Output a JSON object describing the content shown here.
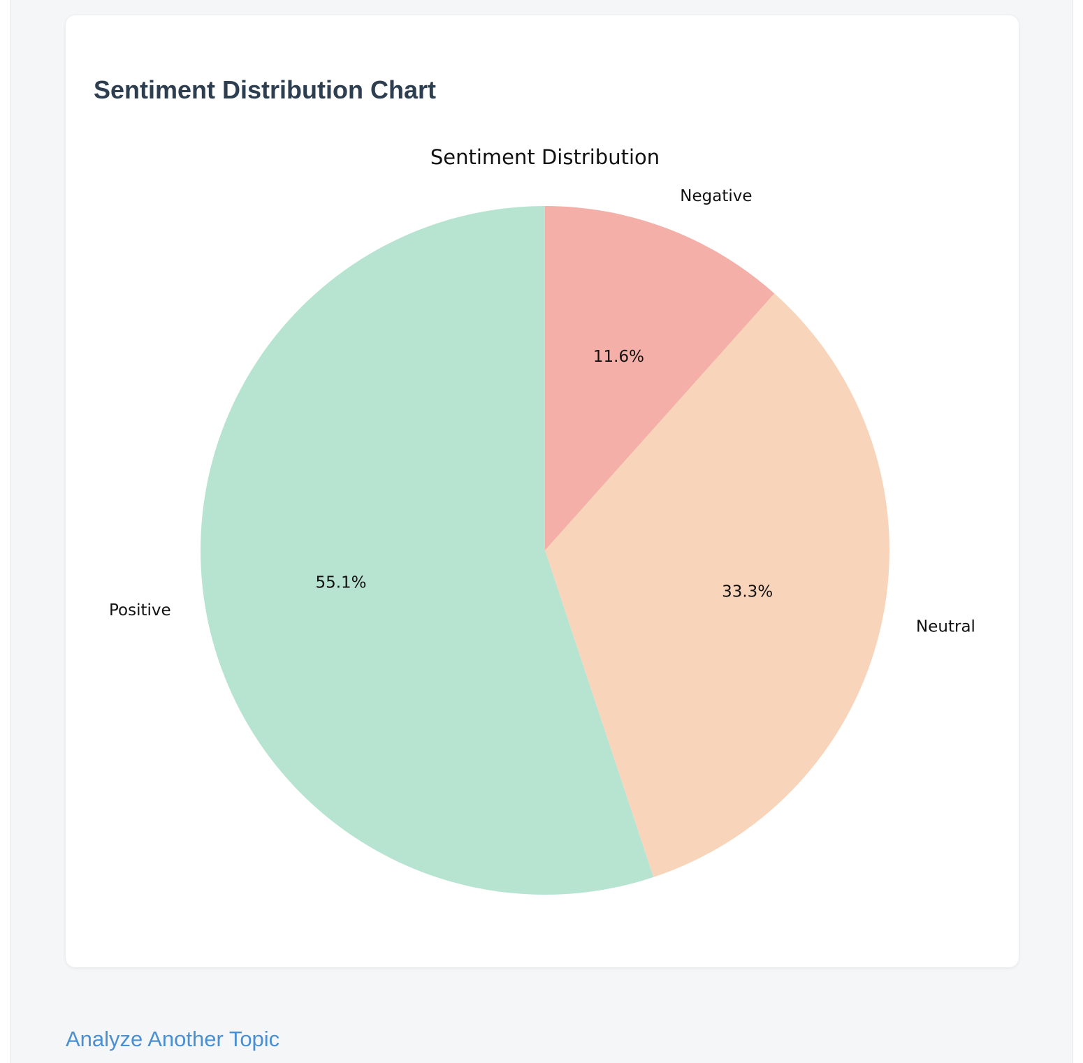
{
  "card": {
    "title": "Sentiment Distribution Chart"
  },
  "link": {
    "label": "Analyze Another Topic"
  },
  "chart_data": {
    "type": "pie",
    "title": "Sentiment Distribution",
    "labels": [
      "Negative",
      "Neutral",
      "Positive"
    ],
    "values": [
      11.6,
      33.3,
      55.1
    ],
    "value_labels": [
      "11.6%",
      "33.3%",
      "55.1%"
    ],
    "colors": [
      "#f4afa8",
      "#f8d4bb",
      "#b6e4d1"
    ],
    "start_angle": "top, clockwise",
    "legend": "none"
  }
}
